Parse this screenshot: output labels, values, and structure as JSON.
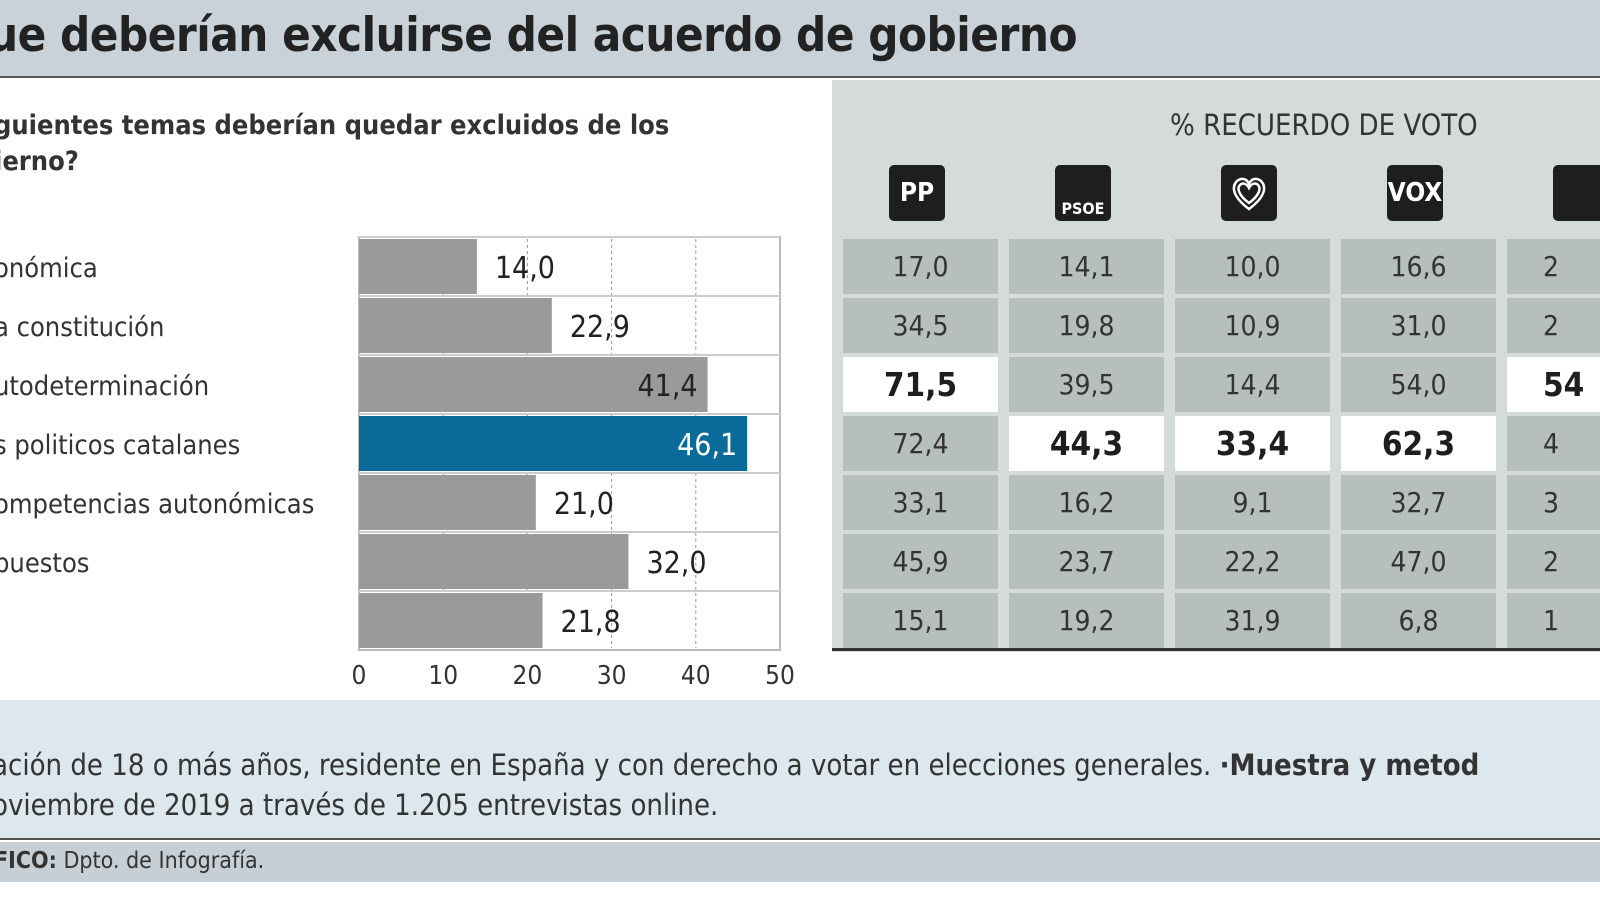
{
  "header": {
    "title": "ue deberían excluirse del acuerdo de gobierno"
  },
  "question": "guientes temas deberían quedar excluidos de los\nierno?",
  "chart_data": {
    "type": "bar",
    "orientation": "horizontal",
    "categories": [
      "onómica",
      "a constitución",
      "utodeterminación",
      "s politicos catalanes",
      "ompetencias autonómicas",
      "puestos",
      ""
    ],
    "values": [
      14.0,
      22.9,
      41.4,
      46.1,
      21.0,
      32.0,
      21.8
    ],
    "value_labels": [
      "14,0",
      "22,9",
      "41,4",
      "46,1",
      "21,0",
      "32,0",
      "21,8"
    ],
    "highlight_index": 3,
    "xlim": [
      0,
      50
    ],
    "xticks": [
      "0",
      "10",
      "20",
      "30",
      "40",
      "50"
    ],
    "grid": true,
    "colors": {
      "bar": "#9a9a9a",
      "highlight": "#0a6b9a"
    }
  },
  "table": {
    "heading": "% RECUERDO DE VOTO",
    "parties": [
      {
        "name": "PP",
        "logo": "PP"
      },
      {
        "name": "PSOE",
        "logo": "PSOE"
      },
      {
        "name": "Más País",
        "logo": "heart-icon"
      },
      {
        "name": "VOX",
        "logo": "VOX"
      },
      {
        "name": "",
        "logo": "partial"
      }
    ],
    "rows": [
      [
        "17,0",
        "14,1",
        "10,0",
        "16,6",
        "2"
      ],
      [
        "34,5",
        "19,8",
        "10,9",
        "31,0",
        "2"
      ],
      [
        "71,5",
        "39,5",
        "14,4",
        "54,0",
        "54"
      ],
      [
        "72,4",
        "44,3",
        "33,4",
        "62,3",
        "4"
      ],
      [
        "33,1",
        "16,2",
        "9,1",
        "32,7",
        "3"
      ],
      [
        "45,9",
        "23,7",
        "22,2",
        "47,0",
        "2"
      ],
      [
        "15,1",
        "19,2",
        "31,9",
        "6,8",
        "1"
      ]
    ],
    "highlights": [
      [
        2,
        0
      ],
      [
        2,
        4
      ],
      [
        3,
        1
      ],
      [
        3,
        2
      ],
      [
        3,
        3
      ]
    ]
  },
  "footer": {
    "line1": "ación de 18 o más años, residente en España y con derecho a votar en elecciones generales. ",
    "line1_bold": "·Muestra y metod",
    "line2": "oviembre de 2019 a través de 1.205 entrevistas online.",
    "credit_label": "FICO:",
    "credit_text": " Dpto. de Infografía."
  }
}
